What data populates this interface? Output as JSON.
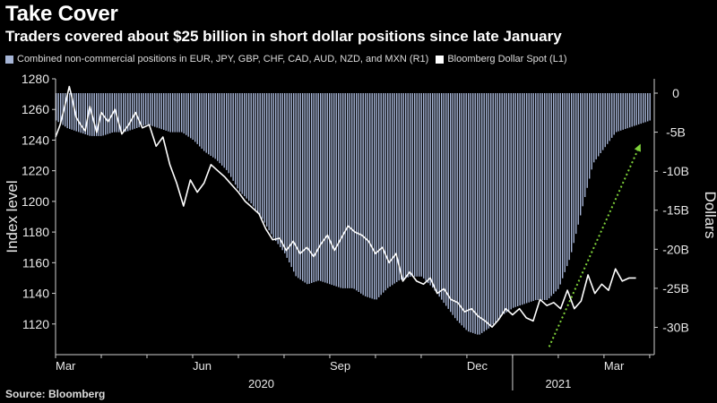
{
  "header": {
    "title": "Take Cover",
    "subtitle": "Traders covered about $25 billion in short dollar positions since late January"
  },
  "source": "Source: Bloomberg",
  "colors": {
    "background": "#000000",
    "bars": "#a6b5d6",
    "line": "#ffffff",
    "arrow": "#7fd23a"
  },
  "chart_data": {
    "type": "bar+line",
    "legend": [
      {
        "name": "Combined non-commercial positions in EUR, JPY, GBP, CHF, CAD, AUD, NZD, and MXN (R1)",
        "color": "#a6b5d6"
      },
      {
        "name": "Bloomberg Dollar Spot (L1)",
        "color": "#ffffff"
      }
    ],
    "left_axis": {
      "label": "Index level",
      "range": [
        1100,
        1280
      ],
      "ticks": [
        1120,
        1140,
        1160,
        1180,
        1200,
        1220,
        1240,
        1260,
        1280
      ],
      "tick_labels": [
        "1120",
        "1140",
        "1160",
        "1180",
        "1200",
        "1220",
        "1240",
        "1260",
        "1280"
      ]
    },
    "right_axis": {
      "label": "Dollars",
      "range": [
        -33.5,
        0
      ],
      "ticks": [
        0,
        -5,
        -10,
        -15,
        -20,
        -25,
        -30
      ],
      "tick_labels": [
        "0",
        "-5B",
        "-10B",
        "-15B",
        "-20B",
        "-25B",
        "-30B"
      ]
    },
    "x_axis": {
      "range": [
        0,
        13.1
      ],
      "month_ticks": [
        {
          "pos": 0,
          "label": "Mar"
        },
        {
          "pos": 3,
          "label": "Jun"
        },
        {
          "pos": 6,
          "label": "Sep"
        },
        {
          "pos": 9,
          "label": "Dec"
        },
        {
          "pos": 12,
          "label": "Mar"
        }
      ],
      "minor_ticks": [
        0,
        1,
        2,
        3,
        4,
        5,
        6,
        7,
        8,
        9,
        10,
        11,
        12,
        13
      ],
      "year_labels": [
        {
          "pos": 4.5,
          "label": "2020"
        },
        {
          "pos": 11,
          "label": "2021"
        }
      ],
      "year_divider": 10
    },
    "positions_series": {
      "name": "Combined non-commercial positions (USD billions)",
      "x": [
        0.0,
        0.25,
        0.5,
        0.75,
        1.0,
        1.25,
        1.5,
        1.75,
        2.0,
        2.25,
        2.5,
        2.75,
        3.0,
        3.25,
        3.5,
        3.75,
        4.0,
        4.25,
        4.5,
        4.75,
        5.0,
        5.25,
        5.5,
        5.75,
        6.0,
        6.25,
        6.5,
        6.75,
        7.0,
        7.25,
        7.5,
        7.75,
        8.0,
        8.25,
        8.5,
        8.75,
        9.0,
        9.25,
        9.5,
        9.75,
        10.0,
        10.25,
        10.5,
        10.75,
        11.0,
        11.25,
        11.5,
        11.75,
        12.0,
        12.25,
        12.5,
        12.75,
        13.0
      ],
      "values": [
        -3.5,
        -4.5,
        -5.0,
        -5.5,
        -5.5,
        -5.0,
        -5.0,
        -4.5,
        -4.0,
        -4.5,
        -5.0,
        -5.0,
        -6.0,
        -7.5,
        -8.5,
        -10.0,
        -12.5,
        -14.0,
        -16.0,
        -18.5,
        -20.5,
        -23.5,
        -24.5,
        -24.0,
        -24.5,
        -25.0,
        -25.0,
        -26.0,
        -26.5,
        -25.0,
        -24.0,
        -23.5,
        -23.5,
        -25.0,
        -27.0,
        -29.0,
        -30.5,
        -31.0,
        -30.0,
        -28.5,
        -27.5,
        -27.0,
        -26.5,
        -26.5,
        -25.0,
        -21.0,
        -15.0,
        -9.0,
        -7.0,
        -5.0,
        -4.5,
        -4.0,
        -3.5
      ]
    },
    "dollar_index_series": {
      "name": "Bloomberg Dollar Spot",
      "x": [
        0.0,
        0.1,
        0.2,
        0.3,
        0.35,
        0.45,
        0.55,
        0.65,
        0.75,
        0.9,
        1.0,
        1.15,
        1.3,
        1.45,
        1.6,
        1.75,
        1.9,
        2.05,
        2.2,
        2.35,
        2.5,
        2.65,
        2.8,
        2.95,
        3.1,
        3.25,
        3.4,
        3.55,
        3.7,
        3.85,
        4.0,
        4.15,
        4.3,
        4.45,
        4.6,
        4.75,
        4.9,
        5.05,
        5.2,
        5.35,
        5.5,
        5.65,
        5.8,
        5.95,
        6.1,
        6.25,
        6.4,
        6.55,
        6.7,
        6.85,
        7.0,
        7.15,
        7.3,
        7.45,
        7.6,
        7.75,
        7.9,
        8.05,
        8.2,
        8.35,
        8.5,
        8.65,
        8.8,
        8.95,
        9.1,
        9.25,
        9.4,
        9.55,
        9.7,
        9.85,
        10.0,
        10.15,
        10.3,
        10.45,
        10.6,
        10.75,
        10.9,
        11.05,
        11.2,
        11.35,
        11.5,
        11.65,
        11.8,
        11.95,
        12.1,
        12.25,
        12.4,
        12.55,
        12.7
      ],
      "values": [
        1242,
        1250,
        1262,
        1275,
        1269,
        1255,
        1250,
        1246,
        1262,
        1245,
        1258,
        1252,
        1260,
        1244,
        1250,
        1258,
        1248,
        1250,
        1236,
        1242,
        1224,
        1212,
        1197,
        1214,
        1206,
        1212,
        1224,
        1220,
        1216,
        1211,
        1206,
        1200,
        1196,
        1192,
        1182,
        1175,
        1176,
        1168,
        1174,
        1166,
        1170,
        1164,
        1172,
        1178,
        1168,
        1176,
        1184,
        1180,
        1178,
        1174,
        1166,
        1170,
        1160,
        1166,
        1148,
        1154,
        1148,
        1146,
        1150,
        1140,
        1143,
        1136,
        1134,
        1128,
        1130,
        1125,
        1122,
        1118,
        1123,
        1130,
        1126,
        1130,
        1124,
        1122,
        1136,
        1132,
        1134,
        1130,
        1142,
        1130,
        1135,
        1152,
        1140,
        1146,
        1142,
        1156,
        1148,
        1150,
        1150
      ]
    },
    "trend_arrow": {
      "from": {
        "x": 10.8,
        "y_right": -32.5
      },
      "to": {
        "x": 12.8,
        "y_right": -6.5
      },
      "style": "dotted"
    }
  }
}
